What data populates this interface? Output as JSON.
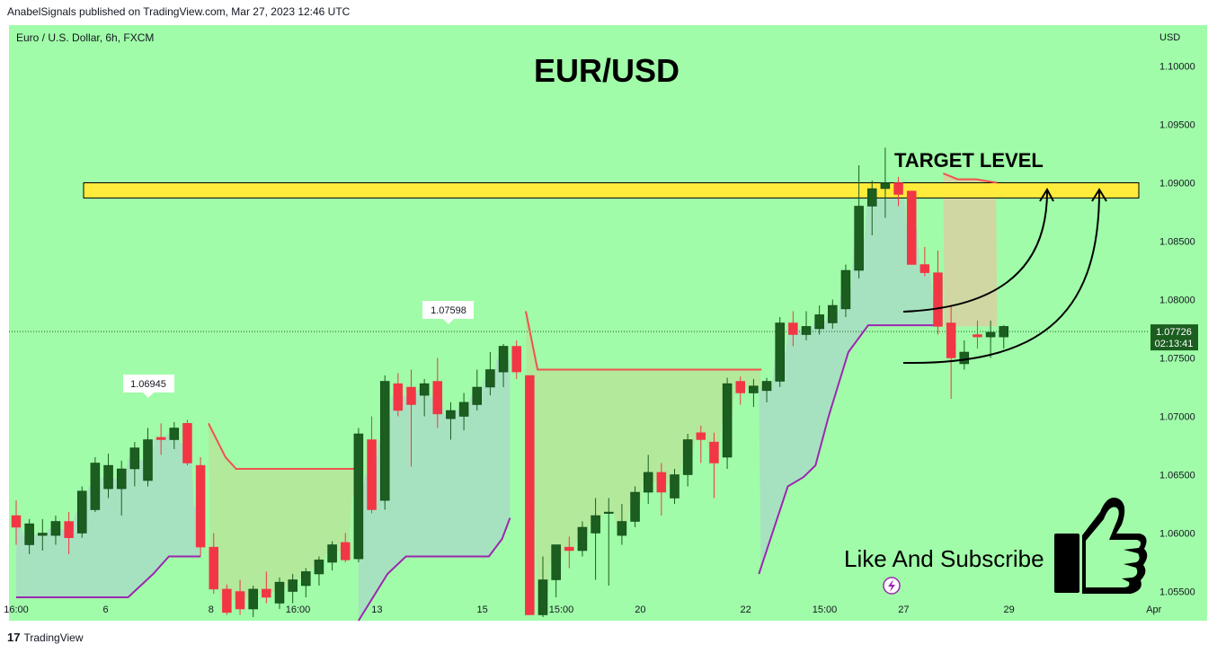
{
  "header": {
    "publish_line": "AnabelSignals published on TradingView.com, Mar 27, 2023 12:46 UTC"
  },
  "footer": {
    "brand": "TradingView"
  },
  "symbol_line": "Euro / U.S. Dollar, 6h, FXCM",
  "currency_label": "USD",
  "colors": {
    "background": "#a0fca8",
    "bull": "#1b5e20",
    "bear": "#f23645",
    "target_band": "#ffeb3b",
    "upper_line": "#ef5350",
    "lower_line": "#9c27b0",
    "price_tag": "#1b5e20"
  },
  "annotations": {
    "title": "EUR/USD",
    "target_label": "TARGET LEVEL",
    "cta": "Like And Subscribe",
    "last_price": "1.07726",
    "countdown": "02:13:41",
    "pivot_low_label": "1.06945",
    "pivot_high_label": "1.07598"
  },
  "chart_data": {
    "type": "candlestick",
    "title": "EUR/USD",
    "y_axis": {
      "range": [
        1.0525,
        1.1035
      ],
      "ticks": [
        "1.10000",
        "1.09500",
        "1.09000",
        "1.08500",
        "1.08000",
        "1.07500",
        "1.07000",
        "1.06500",
        "1.06000",
        "1.05500"
      ]
    },
    "x_axis": {
      "ticks": [
        {
          "label": "16:00",
          "i": 0
        },
        {
          "label": "6",
          "i": 6.8
        },
        {
          "label": "8",
          "i": 14.8
        },
        {
          "label": "16:00",
          "i": 21.4
        },
        {
          "label": "13",
          "i": 27.4
        },
        {
          "label": "15",
          "i": 35.4
        },
        {
          "label": "15:00",
          "i": 41.4
        },
        {
          "label": "20",
          "i": 47.4
        },
        {
          "label": "22",
          "i": 55.4
        },
        {
          "label": "15:00",
          "i": 61.4
        },
        {
          "label": "27",
          "i": 67.4
        },
        {
          "label": "29",
          "i": 75.4
        },
        {
          "label": "Apr",
          "i": 86.4
        }
      ]
    },
    "target_zone": [
      1.0887,
      1.09
    ],
    "last_price": 1.07726,
    "candles": [
      [
        1.0615,
        1.0628,
        1.059,
        1.0605
      ],
      [
        1.059,
        1.0612,
        1.0582,
        1.0608
      ],
      [
        1.0598,
        1.0612,
        1.0585,
        1.06
      ],
      [
        1.0598,
        1.0615,
        1.059,
        1.061
      ],
      [
        1.061,
        1.0618,
        1.0582,
        1.0596
      ],
      [
        1.06,
        1.064,
        1.0596,
        1.0636
      ],
      [
        1.062,
        1.0665,
        1.0618,
        1.066
      ],
      [
        1.0638,
        1.0668,
        1.063,
        1.0658
      ],
      [
        1.0638,
        1.0662,
        1.0615,
        1.0655
      ],
      [
        1.0655,
        1.0678,
        1.064,
        1.0673
      ],
      [
        1.0645,
        1.069,
        1.064,
        1.068
      ],
      [
        1.0682,
        1.0694,
        1.0667,
        1.068
      ],
      [
        1.068,
        1.0695,
        1.0672,
        1.069
      ],
      [
        1.0694,
        1.0697,
        1.0658,
        1.066
      ],
      [
        1.0658,
        1.0665,
        1.058,
        1.0588
      ],
      [
        1.0588,
        1.06,
        1.0548,
        1.0552
      ],
      [
        1.0552,
        1.0556,
        1.053,
        1.0532
      ],
      [
        1.055,
        1.056,
        1.053,
        1.0535
      ],
      [
        1.0535,
        1.0555,
        1.0528,
        1.0552
      ],
      [
        1.0552,
        1.0567,
        1.054,
        1.0545
      ],
      [
        1.054,
        1.0562,
        1.0535,
        1.0558
      ],
      [
        1.055,
        1.0565,
        1.054,
        1.056
      ],
      [
        1.0555,
        1.057,
        1.0545,
        1.0567
      ],
      [
        1.0565,
        1.058,
        1.0555,
        1.0577
      ],
      [
        1.0575,
        1.0593,
        1.0568,
        1.059
      ],
      [
        1.0592,
        1.06,
        1.0575,
        1.0577
      ],
      [
        1.0578,
        1.069,
        1.0575,
        1.0685
      ],
      [
        1.068,
        1.07,
        1.0617,
        1.062
      ],
      [
        1.0628,
        1.0735,
        1.062,
        1.073
      ],
      [
        1.0728,
        1.0737,
        1.07,
        1.0705
      ],
      [
        1.0725,
        1.074,
        1.0657,
        1.071
      ],
      [
        1.0718,
        1.0732,
        1.07,
        1.0728
      ],
      [
        1.073,
        1.075,
        1.069,
        1.0702
      ],
      [
        1.0698,
        1.0712,
        1.068,
        1.0705
      ],
      [
        1.07,
        1.072,
        1.0688,
        1.0712
      ],
      [
        1.071,
        1.074,
        1.0705,
        1.0725
      ],
      [
        1.0725,
        1.0755,
        1.0718,
        1.074
      ],
      [
        1.0738,
        1.0762,
        1.0725,
        1.076
      ],
      [
        1.076,
        1.0765,
        1.0732,
        1.0738
      ],
      [
        1.0735,
        1.0735,
        1.053,
        1.053
      ],
      [
        1.053,
        1.058,
        1.0528,
        1.056
      ],
      [
        1.056,
        1.059,
        1.0545,
        1.059
      ],
      [
        1.0588,
        1.0597,
        1.057,
        1.0585
      ],
      [
        1.0585,
        1.061,
        1.058,
        1.0605
      ],
      [
        1.06,
        1.063,
        1.056,
        1.0615
      ],
      [
        1.0618,
        1.063,
        1.0555,
        1.0618
      ],
      [
        1.0598,
        1.0625,
        1.059,
        1.061
      ],
      [
        1.061,
        1.064,
        1.0605,
        1.0635
      ],
      [
        1.0635,
        1.0667,
        1.0625,
        1.0652
      ],
      [
        1.0652,
        1.066,
        1.0615,
        1.0635
      ],
      [
        1.063,
        1.0655,
        1.0625,
        1.065
      ],
      [
        1.065,
        1.0685,
        1.064,
        1.068
      ],
      [
        1.0686,
        1.0692,
        1.066,
        1.068
      ],
      [
        1.0678,
        1.0686,
        1.063,
        1.066
      ],
      [
        1.0665,
        1.0733,
        1.0655,
        1.0728
      ],
      [
        1.073,
        1.0734,
        1.071,
        1.072
      ],
      [
        1.072,
        1.0732,
        1.0708,
        1.0726
      ],
      [
        1.0722,
        1.0733,
        1.0712,
        1.073
      ],
      [
        1.073,
        1.0785,
        1.0725,
        1.078
      ],
      [
        1.078,
        1.079,
        1.076,
        1.077
      ],
      [
        1.077,
        1.079,
        1.0765,
        1.0777
      ],
      [
        1.0775,
        1.0795,
        1.077,
        1.0787
      ],
      [
        1.078,
        1.08,
        1.0775,
        1.0795
      ],
      [
        1.0792,
        1.083,
        1.0785,
        1.0825
      ],
      [
        1.0825,
        1.0915,
        1.0818,
        1.088
      ],
      [
        1.088,
        1.0902,
        1.0855,
        1.0895
      ],
      [
        1.0895,
        1.093,
        1.087,
        1.09
      ],
      [
        1.09,
        1.0905,
        1.088,
        1.089
      ],
      [
        1.0893,
        1.0893,
        1.083,
        1.083
      ],
      [
        1.083,
        1.0845,
        1.082,
        1.0823
      ],
      [
        1.0823,
        1.0842,
        1.077,
        1.0777
      ],
      [
        1.078,
        1.0795,
        1.0715,
        1.075
      ],
      [
        1.0745,
        1.0765,
        1.074,
        1.0755
      ],
      [
        1.077,
        1.0782,
        1.0758,
        1.0768
      ],
      [
        1.0768,
        1.0782,
        1.075,
        1.0772
      ],
      [
        1.0768,
        1.0778,
        1.0758,
        1.0777
      ]
    ],
    "upper_line": [
      [
        14.6,
        1.0694
      ],
      [
        15.9,
        1.0665
      ],
      [
        16.7,
        1.0655
      ],
      [
        26,
        1.0655
      ],
      [
        null,
        null
      ],
      [
        38.7,
        1.079
      ],
      [
        39.6,
        1.074
      ],
      [
        56.6,
        1.074
      ],
      [
        null,
        null
      ],
      [
        70.4,
        1.0908
      ],
      [
        71.5,
        1.0903
      ],
      [
        72.9,
        1.0903
      ],
      [
        74.5,
        1.09
      ]
    ],
    "lower_line": [
      [
        0,
        1.0545
      ],
      [
        8.5,
        1.0545
      ],
      [
        10.4,
        1.0565
      ],
      [
        11.6,
        1.058
      ],
      [
        14,
        1.058
      ],
      [
        null,
        null
      ],
      [
        26,
        1.0525
      ],
      [
        28.2,
        1.0565
      ],
      [
        29.6,
        1.058
      ],
      [
        30.8,
        1.058
      ],
      [
        35.9,
        1.058
      ],
      [
        36.9,
        1.0595
      ],
      [
        37.5,
        1.0613
      ],
      [
        null,
        null
      ],
      [
        56.4,
        1.0565
      ],
      [
        58.6,
        1.064
      ],
      [
        59.8,
        1.0648
      ],
      [
        60.7,
        1.0658
      ],
      [
        61.7,
        1.07
      ],
      [
        63.2,
        1.0755
      ],
      [
        64.7,
        1.0778
      ],
      [
        69.8,
        1.0778
      ]
    ]
  }
}
